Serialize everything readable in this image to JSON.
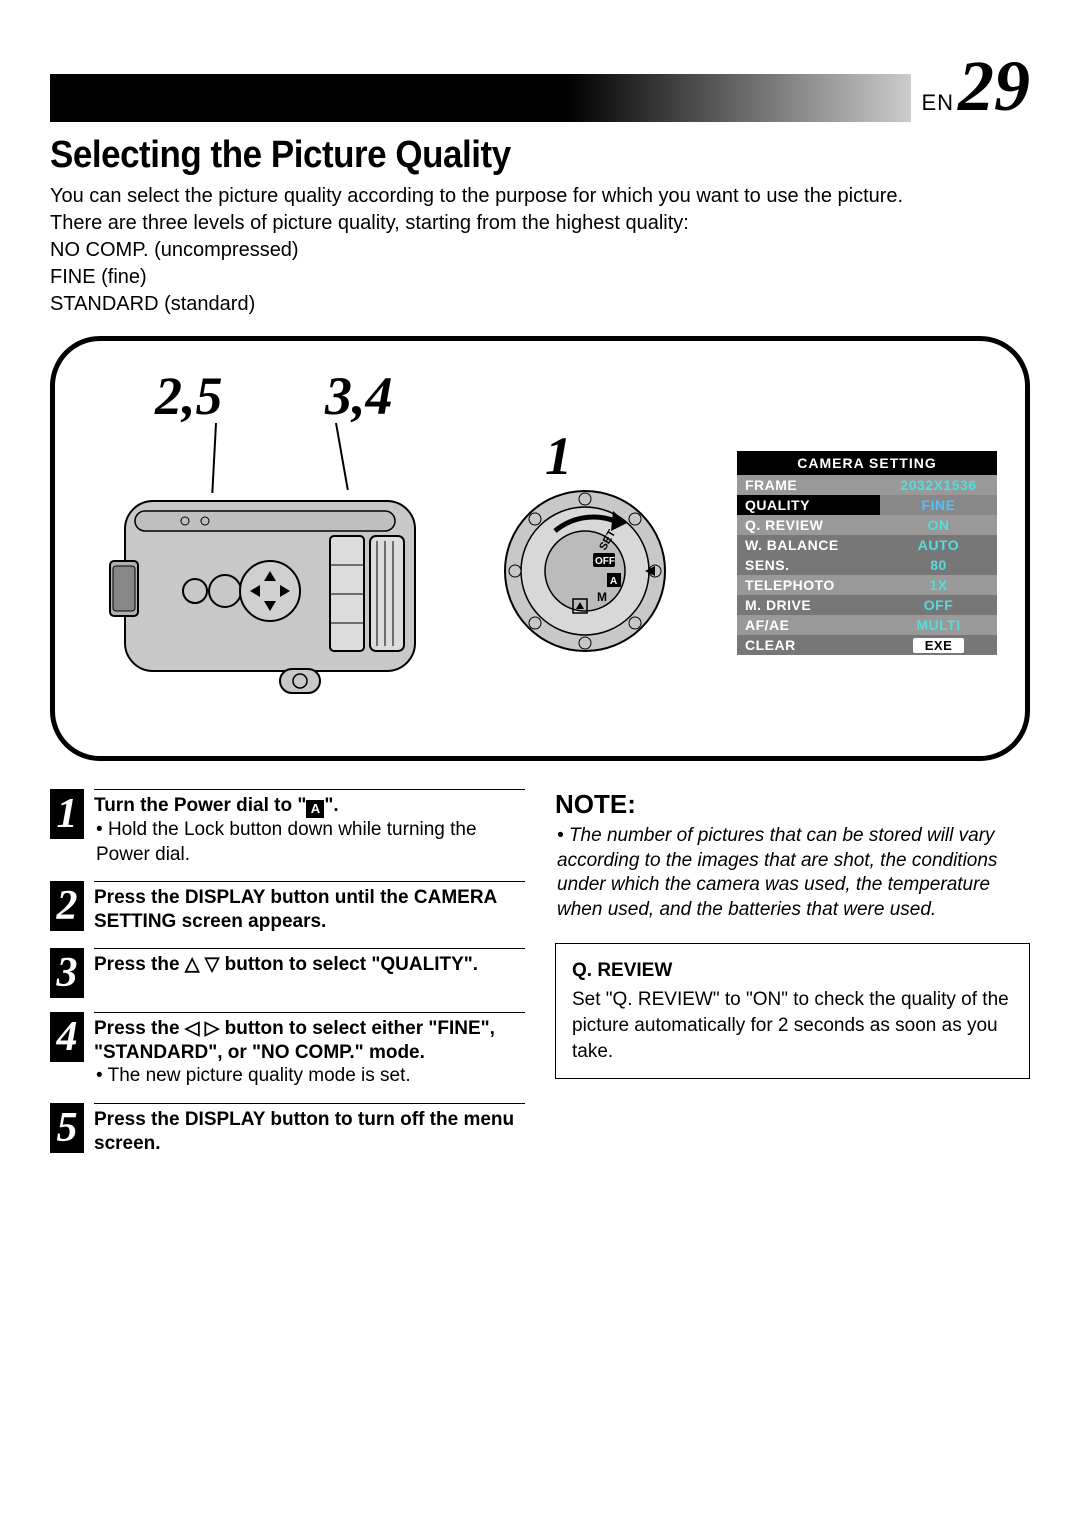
{
  "header": {
    "lang": "EN",
    "page_number": "29"
  },
  "title": "Selecting the Picture Quality",
  "intro_lines": [
    "You can select the picture quality according to the purpose for which you want to use the picture.",
    "There are three levels of picture quality, starting from the highest quality:",
    "NO COMP. (uncompressed)",
    "FINE (fine)",
    "STANDARD (standard)"
  ],
  "callouts": {
    "c1": "2,5",
    "c2": "3,4",
    "c3": "1"
  },
  "camera_table": {
    "title": "CAMERA SETTING",
    "rows": [
      {
        "key": "FRAME",
        "val": "2032X1536",
        "style": "light"
      },
      {
        "key": "QUALITY",
        "val": "FINE",
        "style": "hl"
      },
      {
        "key": "Q. REVIEW",
        "val": "ON",
        "style": "light"
      },
      {
        "key": "W. BALANCE",
        "val": "AUTO",
        "style": "dark"
      },
      {
        "key": "SENS.",
        "val": "80",
        "style": "dark"
      },
      {
        "key": "TELEPHOTO",
        "val": "1X",
        "style": "light"
      },
      {
        "key": "M. DRIVE",
        "val": "OFF",
        "style": "dark"
      },
      {
        "key": "AF/AE",
        "val": "MULTI",
        "style": "light"
      },
      {
        "key": "CLEAR",
        "val": "EXE",
        "style": "exe"
      }
    ]
  },
  "steps": [
    {
      "n": "1",
      "title": "Turn the Power dial to \"A\".",
      "title_suffix_icon": true,
      "sub": "Hold the Lock button down while turning the Power dial."
    },
    {
      "n": "2",
      "title": "Press the DISPLAY button until the CAMERA SETTING screen appears."
    },
    {
      "n": "3",
      "title": "Press the △ ▽ button to select \"QUALITY\"."
    },
    {
      "n": "4",
      "title": "Press the ◁ ▷ button to select either \"FINE\", \"STANDARD\", or \"NO COMP.\" mode.",
      "sub": "The new picture quality mode is set."
    },
    {
      "n": "5",
      "title": "Press the DISPLAY button to turn off the menu screen."
    }
  ],
  "note": {
    "title": "NOTE:",
    "body": "The number of pictures that can be stored will vary according to the images that are shot, the conditions under which the camera was used, the temperature when used, and the batteries that were used."
  },
  "review_box": {
    "title": "Q. REVIEW",
    "body": "Set \"Q. REVIEW\" to \"ON\" to check the quality of the picture automatically for 2 seconds as soon as you take."
  }
}
